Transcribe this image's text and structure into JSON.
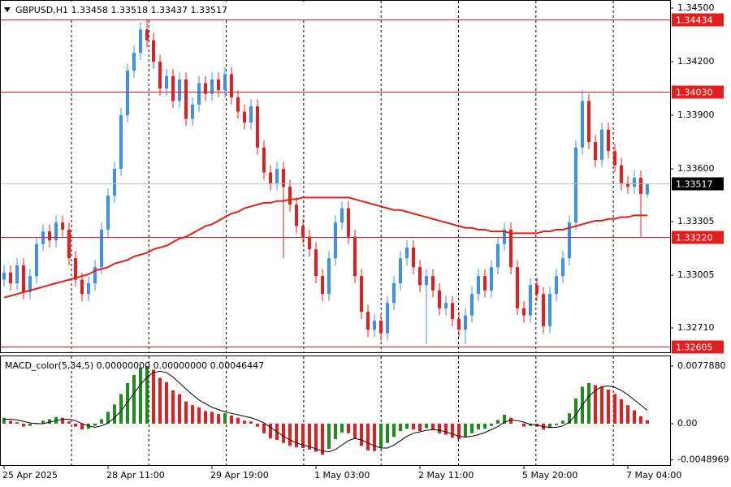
{
  "chart_data": {
    "type": "candlestick",
    "symbol": "GBPUSD,H1",
    "categories": [
      "25 Apr 2025",
      null,
      null,
      null,
      null,
      null,
      null,
      null,
      null,
      null,
      null,
      null,
      null,
      null,
      null,
      null,
      "28 Apr 11:00",
      null,
      null,
      null,
      null,
      null,
      null,
      null,
      null,
      null,
      null,
      null,
      null,
      null,
      null,
      null,
      "29 Apr 19:00",
      null,
      null,
      null,
      null,
      null,
      null,
      null,
      null,
      null,
      null,
      null,
      null,
      null,
      null,
      null,
      "1 May 03:00",
      null,
      null,
      null,
      null,
      null,
      null,
      null,
      null,
      null,
      null,
      null,
      null,
      null,
      null,
      null,
      "2 May 11:00",
      null,
      null,
      null,
      null,
      null,
      null,
      null,
      null,
      null,
      null,
      null,
      null,
      null,
      null,
      null,
      "5 May 20:00",
      null,
      null,
      null,
      null,
      null,
      null,
      null,
      null,
      null,
      null,
      null,
      null,
      null,
      null,
      null,
      "7 May 04:00",
      null,
      null,
      null
    ],
    "open": [
      1.3298,
      1.3302,
      1.3296,
      1.3306,
      1.3291,
      1.33,
      1.3318,
      1.3325,
      1.332,
      1.333,
      1.3326,
      1.331,
      1.3298,
      1.329,
      1.3296,
      1.3305,
      1.3326,
      1.3345,
      1.336,
      1.339,
      1.3415,
      1.3425,
      1.3438,
      1.3432,
      1.342,
      1.3405,
      1.3412,
      1.3398,
      1.341,
      1.3388,
      1.3396,
      1.3408,
      1.3402,
      1.341,
      1.3404,
      1.3413,
      1.34,
      1.3392,
      1.3386,
      1.3395,
      1.3372,
      1.3358,
      1.3352,
      1.336,
      1.335,
      1.334,
      1.3328,
      1.3322,
      1.3315,
      1.33,
      1.329,
      1.331,
      1.333,
      1.3338,
      1.3322,
      1.33,
      1.328,
      1.327,
      1.3275,
      1.3268,
      1.3285,
      1.3296,
      1.331,
      1.3316,
      1.3305,
      1.3295,
      1.33,
      1.3292,
      1.3282,
      1.3285,
      1.3276,
      1.327,
      1.3278,
      1.329,
      1.33,
      1.3292,
      1.3305,
      1.3318,
      1.3326,
      1.3305,
      1.3282,
      1.3278,
      1.3295,
      1.329,
      1.3272,
      1.329,
      1.33,
      1.331,
      1.333,
      1.3372,
      1.3398,
      1.3375,
      1.3365,
      1.3382,
      1.337,
      1.3362,
      1.3352,
      1.335,
      1.3355,
      1.33458
    ],
    "high": [
      1.3306,
      1.3306,
      1.331,
      1.331,
      1.3304,
      1.3322,
      1.3329,
      1.3329,
      1.3334,
      1.3334,
      1.333,
      1.3314,
      1.3302,
      1.33,
      1.3309,
      1.333,
      1.3349,
      1.3364,
      1.3394,
      1.3419,
      1.3429,
      1.3442,
      1.3444,
      1.3436,
      1.3424,
      1.3416,
      1.3416,
      1.3414,
      1.3414,
      1.34,
      1.3412,
      1.3412,
      1.3414,
      1.3414,
      1.3417,
      1.3417,
      1.3404,
      1.3396,
      1.3399,
      1.3399,
      1.3376,
      1.3362,
      1.3364,
      1.3364,
      1.3354,
      1.3344,
      1.3332,
      1.3326,
      1.3319,
      1.3304,
      1.3314,
      1.3334,
      1.3342,
      1.3342,
      1.3326,
      1.3304,
      1.3284,
      1.3279,
      1.3279,
      1.3289,
      1.33,
      1.3314,
      1.332,
      1.332,
      1.3309,
      1.3304,
      1.3304,
      1.3296,
      1.3289,
      1.3289,
      1.328,
      1.3282,
      1.3294,
      1.3304,
      1.3304,
      1.3309,
      1.3322,
      1.333,
      1.333,
      1.3309,
      1.3286,
      1.3299,
      1.3299,
      1.3294,
      1.3294,
      1.3304,
      1.3314,
      1.3334,
      1.3376,
      1.3404,
      1.3402,
      1.3379,
      1.3386,
      1.3386,
      1.3374,
      1.3366,
      1.3356,
      1.3359,
      1.3359,
      1.33518
    ],
    "low": [
      1.3294,
      1.3292,
      1.3292,
      1.3287,
      1.3287,
      1.3296,
      1.3314,
      1.3316,
      1.3316,
      1.3322,
      1.3306,
      1.3294,
      1.3286,
      1.3286,
      1.3292,
      1.3301,
      1.3322,
      1.3341,
      1.3356,
      1.3386,
      1.3411,
      1.3421,
      1.3428,
      1.3416,
      1.3401,
      1.3401,
      1.3394,
      1.3394,
      1.3384,
      1.3384,
      1.3392,
      1.3398,
      1.3398,
      1.34,
      1.34,
      1.3396,
      1.3388,
      1.3382,
      1.3382,
      1.3368,
      1.3354,
      1.3348,
      1.3348,
      1.331,
      1.3336,
      1.3324,
      1.3318,
      1.3311,
      1.3296,
      1.3286,
      1.3286,
      1.3306,
      1.3326,
      1.3318,
      1.3296,
      1.3276,
      1.3266,
      1.3266,
      1.3264,
      1.3264,
      1.3281,
      1.3292,
      1.3306,
      1.3301,
      1.3291,
      1.3262,
      1.3288,
      1.3278,
      1.3278,
      1.3272,
      1.3266,
      1.3262,
      1.3274,
      1.3286,
      1.3288,
      1.3288,
      1.3301,
      1.3314,
      1.3301,
      1.3278,
      1.3274,
      1.3274,
      1.3286,
      1.3268,
      1.3268,
      1.3286,
      1.3296,
      1.3306,
      1.3326,
      1.3368,
      1.3371,
      1.3361,
      1.3361,
      1.3366,
      1.3358,
      1.3348,
      1.3346,
      1.3346,
      1.3322,
      1.33437
    ],
    "close": [
      1.3302,
      1.3296,
      1.3306,
      1.3291,
      1.33,
      1.3318,
      1.3325,
      1.332,
      1.333,
      1.3326,
      1.331,
      1.3298,
      1.329,
      1.3296,
      1.3305,
      1.3326,
      1.3345,
      1.336,
      1.339,
      1.3415,
      1.3425,
      1.3438,
      1.3432,
      1.342,
      1.3405,
      1.3412,
      1.3398,
      1.341,
      1.3388,
      1.3396,
      1.3408,
      1.3402,
      1.341,
      1.3404,
      1.3413,
      1.34,
      1.3392,
      1.3386,
      1.3395,
      1.3372,
      1.3358,
      1.3352,
      1.336,
      1.335,
      1.334,
      1.3328,
      1.3322,
      1.3315,
      1.33,
      1.329,
      1.331,
      1.333,
      1.3338,
      1.3322,
      1.33,
      1.328,
      1.327,
      1.3275,
      1.3268,
      1.3285,
      1.3296,
      1.331,
      1.3316,
      1.3305,
      1.3295,
      1.33,
      1.3292,
      1.3282,
      1.3285,
      1.3276,
      1.327,
      1.3278,
      1.329,
      1.33,
      1.3292,
      1.3305,
      1.3318,
      1.3326,
      1.3305,
      1.3282,
      1.3278,
      1.3295,
      1.329,
      1.3272,
      1.329,
      1.33,
      1.331,
      1.333,
      1.3372,
      1.3398,
      1.3375,
      1.3365,
      1.3382,
      1.337,
      1.3362,
      1.3352,
      1.335,
      1.3355,
      1.3346,
      1.33517
    ],
    "up_color": "#3d8fe8",
    "down_color": "#e31e1e",
    "ylim": [
      1.32574,
      1.34545
    ],
    "yticks": [
      {
        "value": 1.345,
        "label": "1.34500"
      },
      {
        "value": 1.342,
        "label": "1.34200"
      },
      {
        "value": 1.339,
        "label": "1.33900"
      },
      {
        "value": 1.336,
        "label": "1.33600"
      },
      {
        "value": 1.33305,
        "label": "1.33305"
      },
      {
        "value": 1.33005,
        "label": "1.33005"
      },
      {
        "value": 1.3271,
        "label": "1.32710"
      }
    ],
    "levels": [
      {
        "value": 1.34434,
        "label": "1.34434"
      },
      {
        "value": 1.3403,
        "label": "1.34030"
      },
      {
        "value": 1.3322,
        "label": "1.33220"
      },
      {
        "value": 1.32605,
        "label": "1.32605"
      }
    ],
    "level_color": "#e31e1e",
    "ma": {
      "color": "#e0201c",
      "values": [
        1.3288,
        1.3289,
        1.329,
        1.3291,
        1.3292,
        1.3293,
        1.3294,
        1.3295,
        1.3296,
        1.3297,
        1.3298,
        1.3299,
        1.33,
        1.3301,
        1.3303,
        1.3304,
        1.3305,
        1.3307,
        1.3308,
        1.3309,
        1.3311,
        1.3312,
        1.3313,
        1.3315,
        1.3316,
        1.3317,
        1.3319,
        1.3321,
        1.3322,
        1.3324,
        1.3326,
        1.3328,
        1.3329,
        1.3331,
        1.3333,
        1.3335,
        1.3336,
        1.3338,
        1.3339,
        1.334,
        1.3341,
        1.3341,
        1.3342,
        1.3342,
        1.3343,
        1.3343,
        1.3344,
        1.3344,
        1.3344,
        1.3344,
        1.3344,
        1.3344,
        1.3344,
        1.3344,
        1.3343,
        1.3342,
        1.3341,
        1.334,
        1.3339,
        1.3338,
        1.3337,
        1.3337,
        1.3336,
        1.3335,
        1.3334,
        1.3333,
        1.3332,
        1.3331,
        1.333,
        1.3329,
        1.3328,
        1.3327,
        1.3327,
        1.3326,
        1.3326,
        1.3325,
        1.3325,
        1.3325,
        1.3324,
        1.3324,
        1.3324,
        1.3324,
        1.3324,
        1.3325,
        1.3325,
        1.3326,
        1.3326,
        1.3327,
        1.3328,
        1.3329,
        1.333,
        1.3331,
        1.3331,
        1.3332,
        1.3332,
        1.3333,
        1.3333,
        1.3334,
        1.3334,
        1.3334
      ]
    },
    "macd": {
      "type": "bar",
      "title": "MACD_color(5,34,5)",
      "buffer_labels": [
        "0.00000000",
        "0.00000000"
      ],
      "up_color": "#1f8b1f",
      "down_color": "#e31e1e",
      "signal_color": "#000000",
      "values": [
        0.0008,
        0.0004,
        0.0002,
        -0.0004,
        -0.0003,
        0.0001,
        0.0004,
        0.0006,
        0.0009,
        0.0008,
        0.0003,
        -0.0004,
        -0.0008,
        -0.0007,
        -0.0003,
        0.0006,
        0.0016,
        0.0026,
        0.004,
        0.0055,
        0.0066,
        0.0076,
        0.0078,
        0.0073,
        0.0062,
        0.0056,
        0.0045,
        0.004,
        0.003,
        0.0025,
        0.0022,
        0.0017,
        0.0016,
        0.0013,
        0.0014,
        0.0011,
        0.0008,
        0.0004,
        0.0003,
        -0.0004,
        -0.0013,
        -0.002,
        -0.0022,
        -0.0026,
        -0.003,
        -0.0032,
        -0.0033,
        -0.0035,
        -0.0038,
        -0.0042,
        -0.0034,
        -0.0021,
        -0.0012,
        -0.0013,
        -0.002,
        -0.003,
        -0.0036,
        -0.0037,
        -0.0033,
        -0.0026,
        -0.0018,
        -0.001,
        -0.0007,
        -0.0008,
        -0.001,
        -0.0006,
        -0.0009,
        -0.0013,
        -0.0015,
        -0.0019,
        -0.0021,
        -0.0018,
        -0.0013,
        -0.0008,
        -0.0007,
        -0.0003,
        0.0005,
        0.0012,
        0.0008,
        0,
        -0.0004,
        -0.0003,
        -0.0004,
        -0.0008,
        -0.0006,
        -0.0002,
        0.0004,
        0.0014,
        0.0034,
        0.005,
        0.0055,
        0.0052,
        0.005,
        0.0046,
        0.004,
        0.0033,
        0.0025,
        0.0018,
        0.001,
        0.00046447
      ],
      "signal": [
        0.0006,
        0.0006,
        0.0005,
        0.0003,
        0.0001,
        0,
        0,
        0.0002,
        0.0004,
        0.0006,
        0.0006,
        0.0004,
        0,
        -0.0003,
        -0.0005,
        -0.0003,
        0.0001,
        0.0008,
        0.0017,
        0.0029,
        0.0041,
        0.0053,
        0.0063,
        0.0069,
        0.0071,
        0.0069,
        0.0063,
        0.0055,
        0.0047,
        0.0039,
        0.0032,
        0.0027,
        0.0022,
        0.0019,
        0.0016,
        0.0014,
        0.0012,
        0.001,
        0.0008,
        0.0005,
        0.0001,
        -0.0005,
        -0.0011,
        -0.0017,
        -0.0022,
        -0.0026,
        -0.0029,
        -0.0031,
        -0.0034,
        -0.0037,
        -0.0038,
        -0.0035,
        -0.0029,
        -0.0023,
        -0.002,
        -0.0022,
        -0.0026,
        -0.003,
        -0.0033,
        -0.0033,
        -0.0029,
        -0.0023,
        -0.0017,
        -0.0013,
        -0.0011,
        -0.0009,
        -0.0008,
        -0.0009,
        -0.0011,
        -0.0014,
        -0.0017,
        -0.0018,
        -0.0017,
        -0.0015,
        -0.0012,
        -0.0008,
        -0.0004,
        0.0002,
        0.0005,
        0.0004,
        0.0002,
        -0.0001,
        -0.0002,
        -0.0004,
        -0.0005,
        -0.0005,
        -0.0003,
        0.0002,
        0.0012,
        0.0025,
        0.0037,
        0.0045,
        0.005,
        0.0051,
        0.0049,
        0.0045,
        0.0039,
        0.0032,
        0.0025,
        0.0018
      ],
      "ylim": [
        -0.0056,
        0.0091
      ],
      "yticks": [
        {
          "value": 0.007788,
          "label": "0.0077880"
        },
        {
          "value": 0,
          "label": "0.00"
        },
        {
          "value": -0.0048969,
          "label": "-0.0048969"
        }
      ]
    }
  }
}
